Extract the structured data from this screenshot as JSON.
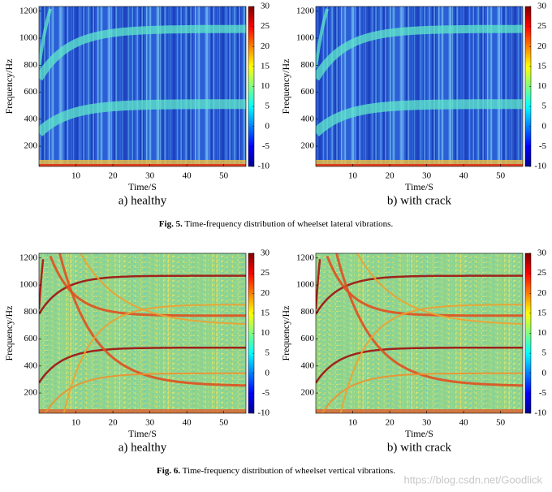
{
  "figures": [
    {
      "label": "Fig. 5.",
      "caption": "Time-frequency distribution of wheelset lateral vibrations.",
      "style": "lateral",
      "panels": [
        {
          "caption": "a) healthy",
          "x_label": "Time/S",
          "y_label": "Frequency/Hz",
          "xlim": [
            0,
            56
          ],
          "xticks": [
            10,
            20,
            30,
            40,
            50
          ],
          "ylim": [
            50,
            1235
          ],
          "yticks": [
            200,
            400,
            600,
            800,
            1000,
            1200
          ],
          "colorbar": {
            "lim": [
              -10,
              30
            ],
            "ticks": [
              -10,
              -5,
              0,
              5,
              10,
              15,
              20,
              25,
              30
            ]
          }
        },
        {
          "caption": "b) with crack",
          "x_label": "Time/S",
          "y_label": "Frequency/Hz",
          "xlim": [
            0,
            56
          ],
          "xticks": [
            10,
            20,
            30,
            40,
            50
          ],
          "ylim": [
            50,
            1235
          ],
          "yticks": [
            200,
            400,
            600,
            800,
            1000,
            1200
          ],
          "colorbar": {
            "lim": [
              -10,
              30
            ],
            "ticks": [
              -10,
              -5,
              0,
              5,
              10,
              15,
              20,
              25,
              30
            ]
          }
        }
      ]
    },
    {
      "label": "Fig. 6.",
      "caption": "Time-frequency distribution of wheelset vertical vibrations.",
      "style": "vertical",
      "panels": [
        {
          "caption": "a) healthy",
          "x_label": "Time/S",
          "y_label": "Frequency/Hz",
          "xlim": [
            0,
            56
          ],
          "xticks": [
            10,
            20,
            30,
            40,
            50
          ],
          "ylim": [
            50,
            1235
          ],
          "yticks": [
            200,
            400,
            600,
            800,
            1000,
            1200
          ],
          "colorbar": {
            "lim": [
              -10,
              30
            ],
            "ticks": [
              -10,
              -5,
              0,
              5,
              10,
              15,
              20,
              25,
              30
            ]
          }
        },
        {
          "caption": "b) with crack",
          "x_label": "Time/S",
          "y_label": "Frequency/Hz",
          "xlim": [
            0,
            56
          ],
          "xticks": [
            10,
            20,
            30,
            40,
            50
          ],
          "ylim": [
            50,
            1235
          ],
          "yticks": [
            200,
            400,
            600,
            800,
            1000,
            1200
          ],
          "colorbar": {
            "lim": [
              -10,
              30
            ],
            "ticks": [
              -10,
              -5,
              0,
              5,
              10,
              15,
              20,
              25,
              30
            ]
          }
        }
      ]
    }
  ],
  "watermark": "https://blog.csdn.net/Goodlick"
}
